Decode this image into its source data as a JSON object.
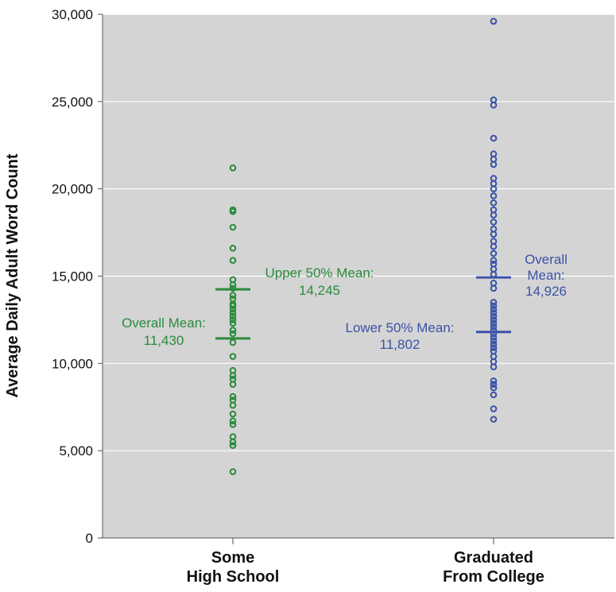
{
  "chart_data": {
    "type": "scatter",
    "title": "",
    "ylabel": "Average Daily Adult Word Count",
    "ylim": [
      0,
      30000
    ],
    "yticks": [
      0,
      5000,
      10000,
      15000,
      20000,
      25000,
      30000
    ],
    "ytick_labels": [
      "0",
      "5,000",
      "10,000",
      "15,000",
      "20,000",
      "25,000",
      "30,000"
    ],
    "grid": "horizontal",
    "plot_background": "#d4d4d4",
    "categories": [
      {
        "lines": [
          "Some",
          "High School"
        ]
      },
      {
        "lines": [
          "Graduated",
          "From College"
        ]
      }
    ],
    "series": [
      {
        "color": "#2a8a3a",
        "values": [
          3800,
          5300,
          5500,
          5800,
          6500,
          6700,
          7100,
          7600,
          7900,
          8100,
          8800,
          9100,
          9300,
          9600,
          10400,
          11200,
          11700,
          11900,
          12300,
          12500,
          12700,
          12900,
          13100,
          13300,
          13400,
          13700,
          13900,
          14300,
          14500,
          14800,
          15900,
          16600,
          17800,
          18700,
          18800,
          21200
        ],
        "means": [
          {
            "value": 14245,
            "lines": [
              "Upper 50% Mean:",
              "14,245"
            ]
          },
          {
            "value": 11430,
            "lines": [
              "Overall Mean:",
              "11,430"
            ]
          }
        ]
      },
      {
        "color": "#3a52a8",
        "values": [
          6800,
          7400,
          8200,
          8600,
          8800,
          9000,
          9800,
          10100,
          10400,
          10700,
          10900,
          11100,
          11300,
          11500,
          11700,
          11900,
          12100,
          12300,
          12500,
          12700,
          12900,
          13100,
          13300,
          13500,
          14300,
          14600,
          15100,
          15400,
          15700,
          15900,
          16300,
          16700,
          17000,
          17400,
          17700,
          18100,
          18500,
          18800,
          19200,
          19600,
          20000,
          20300,
          20600,
          21400,
          21700,
          22000,
          22900,
          24800,
          25100,
          29600
        ],
        "means": [
          {
            "value": 14926,
            "lines": [
              "Overall",
              "Mean:",
              "14,926"
            ]
          },
          {
            "value": 11802,
            "lines": [
              "Lower 50% Mean:",
              "11,802"
            ]
          }
        ]
      }
    ]
  }
}
